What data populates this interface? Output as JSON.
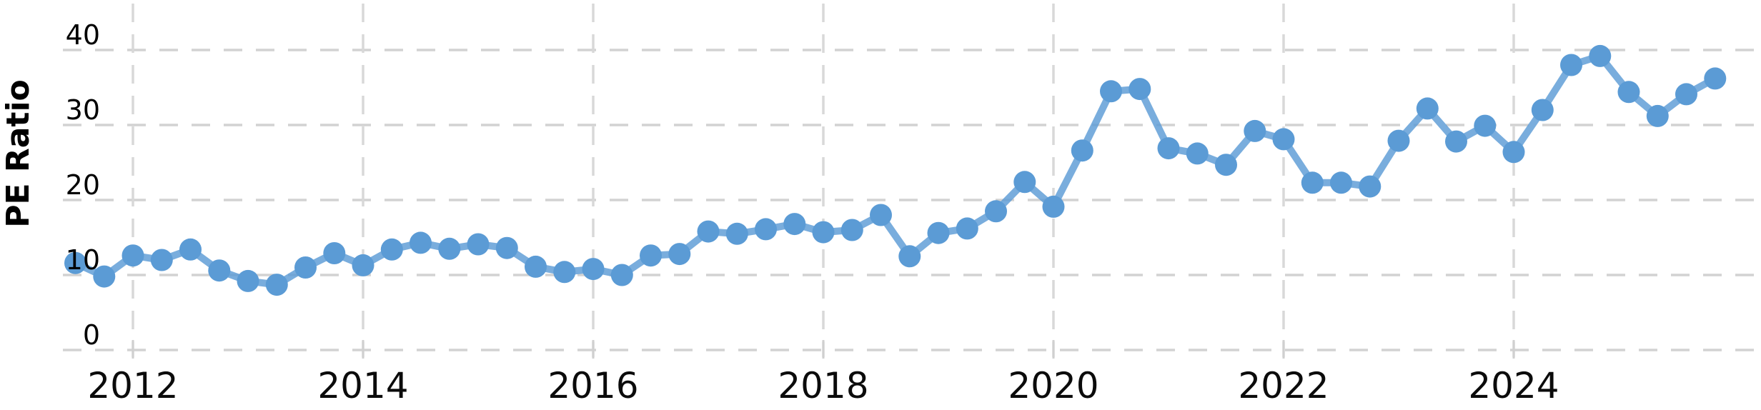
{
  "chart_data": {
    "type": "line",
    "title": "",
    "xlabel": "",
    "ylabel": "PE Ratio",
    "grid": "dashed",
    "legend_position": "none",
    "marker": "circle",
    "xlim": [
      2011.2,
      2026.17
    ],
    "ylim": [
      0,
      43.5
    ],
    "y_ticks": [
      0,
      10,
      20,
      30,
      40
    ],
    "x_ticks": [
      {
        "year": 2012,
        "label": "2012"
      },
      {
        "year": 2014,
        "label": "2014"
      },
      {
        "year": 2016,
        "label": "2016"
      },
      {
        "year": 2018,
        "label": "2018"
      },
      {
        "year": 2020,
        "label": "2020"
      },
      {
        "year": 2022,
        "label": "2022"
      },
      {
        "year": 2024,
        "label": "2024"
      }
    ],
    "series": [
      {
        "name": "PE Ratio",
        "x": [
          2011.5,
          2011.75,
          2012.0,
          2012.25,
          2012.5,
          2012.75,
          2013.0,
          2013.25,
          2013.5,
          2013.75,
          2014.0,
          2014.25,
          2014.5,
          2014.75,
          2015.0,
          2015.25,
          2015.5,
          2015.75,
          2016.0,
          2016.25,
          2016.5,
          2016.75,
          2017.0,
          2017.25,
          2017.5,
          2017.75,
          2018.0,
          2018.25,
          2018.5,
          2018.75,
          2019.0,
          2019.25,
          2019.5,
          2019.75,
          2020.0,
          2020.25,
          2020.5,
          2020.75,
          2021.0,
          2021.25,
          2021.5,
          2021.75,
          2022.0,
          2022.25,
          2022.5,
          2022.75,
          2023.0,
          2023.25,
          2023.5,
          2023.75,
          2024.0,
          2024.25,
          2024.5,
          2024.75,
          2025.0,
          2025.25,
          2025.5,
          2025.75
        ],
        "values": [
          11.6,
          9.8,
          12.6,
          12.0,
          13.4,
          10.6,
          9.2,
          8.7,
          11.0,
          12.9,
          11.3,
          13.4,
          14.3,
          13.5,
          14.1,
          13.6,
          11.1,
          10.4,
          10.8,
          10.0,
          12.6,
          12.8,
          15.8,
          15.5,
          16.1,
          16.8,
          15.7,
          16.0,
          18.0,
          12.5,
          15.6,
          16.2,
          18.5,
          22.4,
          19.1,
          26.6,
          34.5,
          34.8,
          26.9,
          26.2,
          24.7,
          29.2,
          28.1,
          22.3,
          22.3,
          21.8,
          27.9,
          32.2,
          27.8,
          29.9,
          26.4,
          32.0,
          38.0,
          39.2,
          34.4,
          31.2,
          34.1,
          36.2
        ]
      }
    ],
    "colors": {
      "series": "#5b9bd5",
      "horizontal_grid": "#d2d2d2",
      "vertical_grid": "#d8d8d8",
      "tick_mark": "#d0d0d0",
      "text": "#000000",
      "background": "#ffffff"
    }
  }
}
